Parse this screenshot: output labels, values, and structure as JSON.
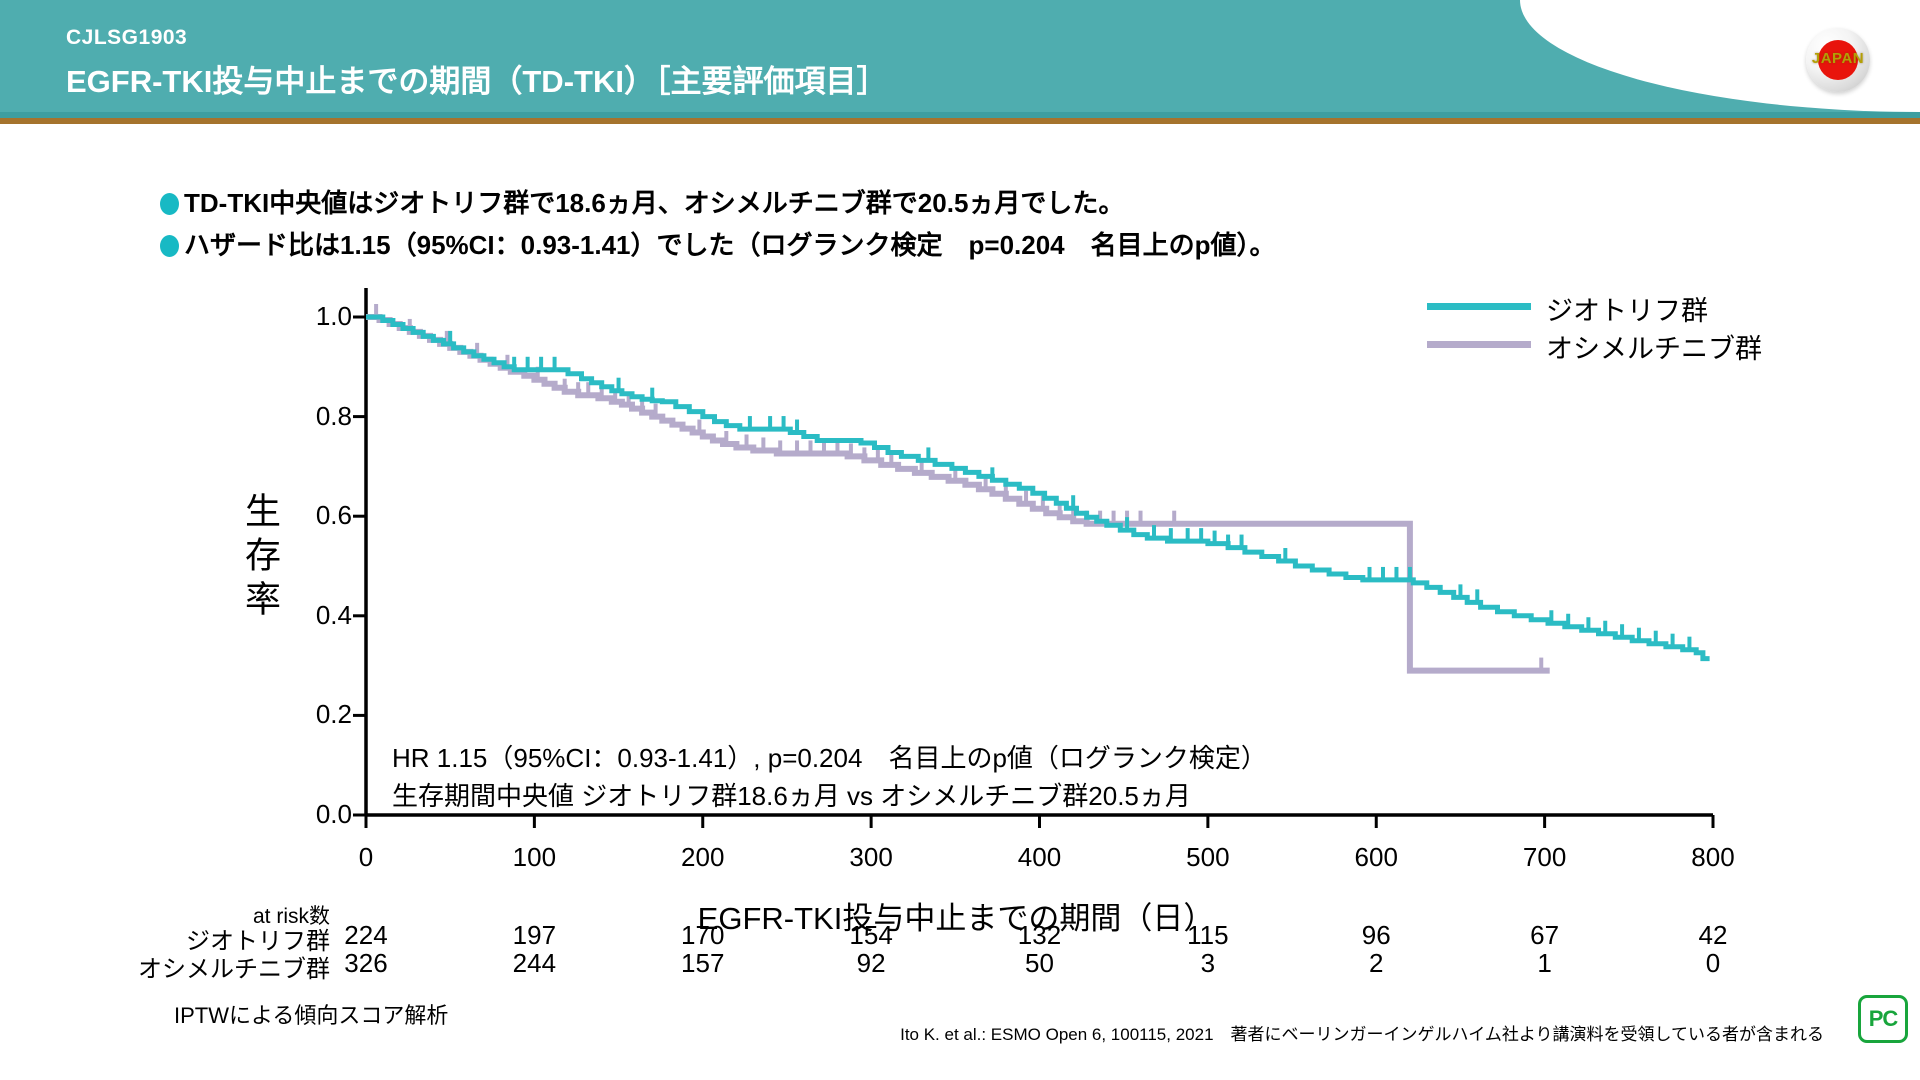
{
  "header": {
    "study_id": "CJLSG1903",
    "title": "EGFR-TKI投与中止までの期間（TD-TKI）［主要評価項目］",
    "logo_text": "JAPAN"
  },
  "bullets": [
    "TD-TKI中央値はジオトリフ群で18.6ヵ月、オシメルチニブ群で20.5ヵ月でした。",
    "ハザード比は1.15（95%CI：0.93-1.41）でした（ログランク検定　p=0.204　名目上のp値）。"
  ],
  "chart_data": {
    "type": "line",
    "variant": "kaplan-meier-step",
    "xlabel": "EGFR-TKI投与中止までの期間（日）",
    "ylabel": "生存率",
    "xlim": [
      0,
      800
    ],
    "ylim": [
      0.0,
      1.0
    ],
    "xticks": [
      0,
      100,
      200,
      300,
      400,
      500,
      600,
      700,
      800
    ],
    "yticks": [
      "1.0",
      "0.8",
      "0.6",
      "0.4",
      "0.2",
      "0.0"
    ],
    "grid": false,
    "legend_position": "top-right",
    "annotations": [
      "HR 1.15（95%CI：0.93-1.41）, p=0.204　名目上のp値（ログランク検定）",
      "生存期間中央値 ジオトリフ群18.6ヵ月 vs オシメルチニブ群20.5ヵ月"
    ],
    "series": [
      {
        "name": "ジオトリフ群",
        "color": "#2BBCC4",
        "median_months": 18.6,
        "steps": [
          [
            0,
            1.0
          ],
          [
            10,
            0.993
          ],
          [
            16,
            0.985
          ],
          [
            22,
            0.977
          ],
          [
            28,
            0.969
          ],
          [
            34,
            0.961
          ],
          [
            40,
            0.953
          ],
          [
            46,
            0.946
          ],
          [
            52,
            0.938
          ],
          [
            58,
            0.93
          ],
          [
            64,
            0.922
          ],
          [
            70,
            0.915
          ],
          [
            76,
            0.908
          ],
          [
            82,
            0.9
          ],
          [
            88,
            0.894
          ],
          [
            120,
            0.886
          ],
          [
            128,
            0.876
          ],
          [
            134,
            0.868
          ],
          [
            140,
            0.86
          ],
          [
            146,
            0.852
          ],
          [
            152,
            0.846
          ],
          [
            158,
            0.84
          ],
          [
            164,
            0.835
          ],
          [
            170,
            0.832
          ],
          [
            176,
            0.83
          ],
          [
            184,
            0.82
          ],
          [
            192,
            0.81
          ],
          [
            200,
            0.8
          ],
          [
            207,
            0.79
          ],
          [
            214,
            0.782
          ],
          [
            222,
            0.775
          ],
          [
            252,
            0.768
          ],
          [
            260,
            0.76
          ],
          [
            268,
            0.752
          ],
          [
            294,
            0.747
          ],
          [
            302,
            0.738
          ],
          [
            310,
            0.728
          ],
          [
            318,
            0.72
          ],
          [
            328,
            0.712
          ],
          [
            338,
            0.704
          ],
          [
            348,
            0.696
          ],
          [
            356,
            0.688
          ],
          [
            364,
            0.68
          ],
          [
            372,
            0.672
          ],
          [
            380,
            0.664
          ],
          [
            388,
            0.656
          ],
          [
            396,
            0.646
          ],
          [
            403,
            0.636
          ],
          [
            410,
            0.626
          ],
          [
            416,
            0.616
          ],
          [
            422,
            0.606
          ],
          [
            428,
            0.598
          ],
          [
            434,
            0.59
          ],
          [
            440,
            0.582
          ],
          [
            448,
            0.572
          ],
          [
            456,
            0.563
          ],
          [
            464,
            0.556
          ],
          [
            476,
            0.55
          ],
          [
            500,
            0.545
          ],
          [
            512,
            0.537
          ],
          [
            522,
            0.528
          ],
          [
            532,
            0.519
          ],
          [
            542,
            0.51
          ],
          [
            552,
            0.5
          ],
          [
            562,
            0.492
          ],
          [
            572,
            0.484
          ],
          [
            582,
            0.477
          ],
          [
            592,
            0.472
          ],
          [
            622,
            0.466
          ],
          [
            630,
            0.457
          ],
          [
            638,
            0.447
          ],
          [
            646,
            0.437
          ],
          [
            654,
            0.427
          ],
          [
            662,
            0.417
          ],
          [
            672,
            0.408
          ],
          [
            682,
            0.4
          ],
          [
            692,
            0.392
          ],
          [
            702,
            0.385
          ],
          [
            712,
            0.378
          ],
          [
            722,
            0.371
          ],
          [
            732,
            0.364
          ],
          [
            742,
            0.357
          ],
          [
            752,
            0.35
          ],
          [
            762,
            0.344
          ],
          [
            772,
            0.338
          ],
          [
            782,
            0.332
          ],
          [
            790,
            0.326
          ],
          [
            794,
            0.314
          ],
          [
            798,
            0.314
          ]
        ],
        "censor_days": [
          50,
          88,
          96,
          104,
          112,
          150,
          170,
          228,
          240,
          248,
          256,
          334,
          372,
          420,
          452,
          468,
          478,
          488,
          496,
          504,
          512,
          520,
          546,
          596,
          604,
          612,
          620,
          650,
          660,
          704,
          714,
          726,
          736,
          746,
          756,
          766,
          776,
          786
        ]
      },
      {
        "name": "オシメルチニブ群",
        "color": "#B5ABCB",
        "median_months": 20.5,
        "steps": [
          [
            0,
            1.0
          ],
          [
            8,
            0.994
          ],
          [
            14,
            0.986
          ],
          [
            20,
            0.978
          ],
          [
            26,
            0.97
          ],
          [
            32,
            0.962
          ],
          [
            38,
            0.954
          ],
          [
            44,
            0.946
          ],
          [
            50,
            0.938
          ],
          [
            56,
            0.93
          ],
          [
            62,
            0.922
          ],
          [
            68,
            0.914
          ],
          [
            74,
            0.906
          ],
          [
            80,
            0.898
          ],
          [
            86,
            0.89
          ],
          [
            94,
            0.882
          ],
          [
            100,
            0.874
          ],
          [
            106,
            0.866
          ],
          [
            112,
            0.858
          ],
          [
            118,
            0.85
          ],
          [
            126,
            0.843
          ],
          [
            138,
            0.837
          ],
          [
            146,
            0.83
          ],
          [
            152,
            0.824
          ],
          [
            158,
            0.816
          ],
          [
            164,
            0.808
          ],
          [
            170,
            0.8
          ],
          [
            176,
            0.792
          ],
          [
            182,
            0.784
          ],
          [
            188,
            0.776
          ],
          [
            194,
            0.768
          ],
          [
            200,
            0.76
          ],
          [
            206,
            0.752
          ],
          [
            212,
            0.745
          ],
          [
            220,
            0.738
          ],
          [
            230,
            0.732
          ],
          [
            244,
            0.726
          ],
          [
            286,
            0.72
          ],
          [
            296,
            0.712
          ],
          [
            306,
            0.703
          ],
          [
            316,
            0.695
          ],
          [
            326,
            0.687
          ],
          [
            336,
            0.679
          ],
          [
            346,
            0.671
          ],
          [
            356,
            0.663
          ],
          [
            364,
            0.654
          ],
          [
            372,
            0.645
          ],
          [
            380,
            0.635
          ],
          [
            388,
            0.625
          ],
          [
            396,
            0.615
          ],
          [
            404,
            0.606
          ],
          [
            412,
            0.598
          ],
          [
            420,
            0.59
          ],
          [
            428,
            0.585
          ],
          [
            620,
            0.29
          ],
          [
            703,
            0.29
          ]
        ],
        "censor_days": [
          6,
          26,
          48,
          66,
          84,
          102,
          118,
          126,
          132,
          140,
          148,
          156,
          164,
          172,
          198,
          214,
          226,
          236,
          246,
          256,
          264,
          272,
          280,
          288,
          296,
          304,
          312,
          330,
          350,
          368,
          380,
          392,
          402,
          412,
          420,
          428,
          436,
          444,
          452,
          460,
          480,
          698
        ]
      }
    ],
    "hazard_ratio": "1.15",
    "ci_95": "0.93-1.41",
    "p_value": "0.204"
  },
  "at_risk": {
    "label": "at risk数",
    "rows": [
      {
        "name": "ジオトリフ群",
        "values": [
          "224",
          "197",
          "170",
          "154",
          "132",
          "115",
          "96",
          "67",
          "42"
        ]
      },
      {
        "name": "オシメルチニブ群",
        "values": [
          "326",
          "244",
          "157",
          "92",
          "50",
          "3",
          "2",
          "1",
          "0"
        ]
      }
    ]
  },
  "footer": {
    "left": "IPTWによる傾向スコア解析",
    "reference": "Ito K. et al.: ESMO Open  6, 100115, 2021　著者にベーリンガーインゲルハイム社より講演料を受領している者が含まれる",
    "pc_icon_text": "PC"
  },
  "colors": {
    "header_bg": "#4FADAF",
    "rule_teal": "#3D9EA0",
    "rule_brown": "#A5732D",
    "bullet_dot": "#17B9C4",
    "series_afatinib": "#2BBCC4",
    "series_osimertinib": "#B5ABCB",
    "pc_green": "#18A53C",
    "axis": "#000000"
  }
}
